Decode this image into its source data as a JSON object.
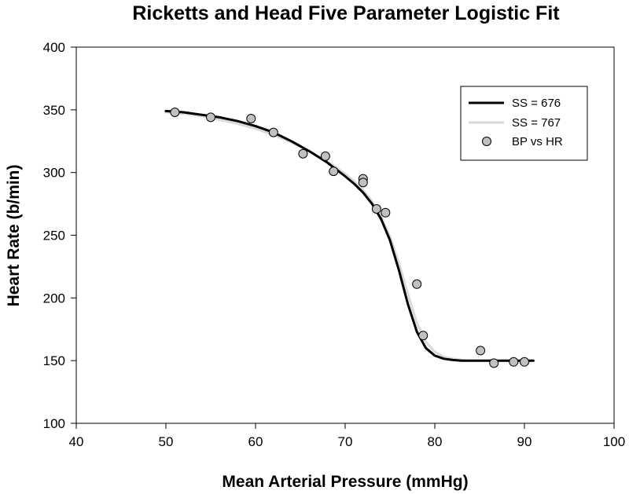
{
  "chart_data": {
    "type": "scatter",
    "title": "Ricketts and Head Five Parameter Logistic Fit",
    "xlabel": "Mean Arterial Pressure (mmHg)",
    "ylabel": "Heart Rate (b/min)",
    "xlim": [
      40,
      100
    ],
    "ylim": [
      100,
      400
    ],
    "xticks": [
      40,
      50,
      60,
      70,
      80,
      90,
      100
    ],
    "yticks": [
      100,
      150,
      200,
      250,
      300,
      350,
      400
    ],
    "grid": false,
    "legend_position": "top-right",
    "series": [
      {
        "name": "SS = 676",
        "kind": "line",
        "color": "#000000",
        "x": [
          50,
          52,
          54,
          56,
          58,
          60,
          62,
          64,
          66,
          68,
          70,
          71,
          72,
          73,
          74,
          75,
          76,
          77,
          78,
          79,
          80,
          81,
          82,
          83,
          84,
          85,
          86,
          88,
          90,
          91
        ],
        "y": [
          349,
          348,
          346,
          344,
          341,
          337,
          332,
          325,
          317,
          308,
          297,
          291,
          284,
          275,
          263,
          246,
          222,
          195,
          173,
          160,
          154,
          151.5,
          150.5,
          150,
          150,
          150,
          150,
          150,
          150,
          150
        ]
      },
      {
        "name": "SS = 767",
        "kind": "line",
        "color": "#d9d9d9",
        "x": [
          50,
          52,
          54,
          56,
          58,
          60,
          62,
          64,
          66,
          68,
          70,
          71,
          72,
          73,
          74,
          75,
          76,
          77,
          78,
          79,
          80,
          81,
          82,
          83,
          84,
          85,
          86,
          88,
          90,
          91
        ],
        "y": [
          348,
          347,
          345,
          342,
          339,
          335,
          330,
          324,
          317,
          309,
          299,
          293,
          286,
          277,
          265,
          249,
          228,
          203,
          180,
          165,
          157,
          153,
          151.5,
          150.5,
          150,
          150,
          150,
          150,
          150,
          150
        ]
      },
      {
        "name": "BP vs HR",
        "kind": "scatter",
        "color": "#c0c0c0",
        "x": [
          51,
          55,
          59.5,
          62,
          65.3,
          67.8,
          68.7,
          72,
          72,
          73.5,
          74.5,
          78,
          78.7,
          85.1,
          86.6,
          88.8,
          90
        ],
        "y": [
          348,
          344,
          343,
          332,
          315,
          313,
          301,
          295,
          292,
          271,
          268,
          211,
          170,
          158,
          148,
          149,
          149
        ]
      }
    ]
  }
}
